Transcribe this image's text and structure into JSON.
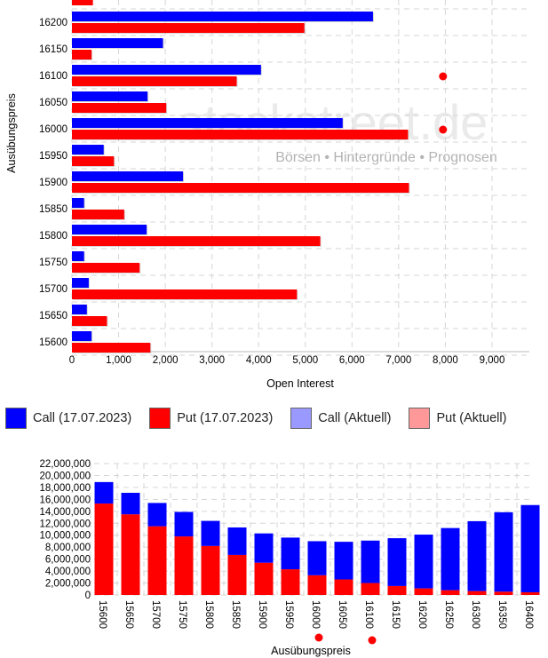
{
  "watermark": {
    "brand": "stockstreet.de",
    "tagline": "Börsen • Hintergründe • Prognosen"
  },
  "legend": [
    {
      "label": "Call (17.07.2023)",
      "color": "#0000ff"
    },
    {
      "label": "Put (17.07.2023)",
      "color": "#ff0000"
    },
    {
      "label": "Call (Aktuell)",
      "color": "#9999ff"
    },
    {
      "label": "Put (Aktuell)",
      "color": "#ff9999"
    }
  ],
  "chart_data": [
    {
      "type": "bar",
      "orientation": "horizontal",
      "xlabel": "Open Interest",
      "ylabel": "Ausübungspreis",
      "xlim": [
        0,
        9800
      ],
      "xticks": [
        0,
        1000,
        2000,
        3000,
        4000,
        5000,
        6000,
        7000,
        8000,
        9000
      ],
      "xtick_labels": [
        "0",
        "1,000",
        "2,000",
        "3,000",
        "4,000",
        "5,000",
        "6,000",
        "7,000",
        "8,000",
        "9,000"
      ],
      "grid": true,
      "categories": [
        "16200",
        "16150",
        "16100",
        "16050",
        "16000",
        "15950",
        "15900",
        "15850",
        "15800",
        "15750",
        "15700",
        "15650",
        "15600"
      ],
      "series": [
        {
          "name": "Call (17.07.2023)",
          "color": "#0000ff",
          "values": [
            6450,
            1950,
            4050,
            1620,
            5800,
            680,
            2380,
            260,
            1600,
            260,
            360,
            320,
            420
          ]
        },
        {
          "name": "Put (17.07.2023)",
          "color": "#ff0000",
          "values": [
            4980,
            420,
            3530,
            2020,
            7200,
            900,
            7220,
            1120,
            5320,
            1450,
            4820,
            750,
            1680
          ]
        }
      ],
      "partial_top_bar": {
        "series": "Put (17.07.2023)",
        "value": 450
      },
      "markers": [
        {
          "category": "16100",
          "x": 7950,
          "color": "#ff0000"
        },
        {
          "category": "16000",
          "x": 7950,
          "color": "#ff0000"
        }
      ]
    },
    {
      "type": "bar",
      "stacked": true,
      "xlabel": "Ausübungspreis",
      "ylim": [
        0,
        22000000
      ],
      "yticks": [
        0,
        2000000,
        4000000,
        6000000,
        8000000,
        10000000,
        12000000,
        14000000,
        16000000,
        18000000,
        20000000,
        22000000
      ],
      "ytick_labels": [
        "0",
        "2,000,000",
        "4,000,000",
        "6,000,000",
        "8,000,000",
        "10,000,000",
        "12,000,000",
        "14,000,000",
        "16,000,000",
        "18,000,000",
        "20,000,000",
        "22,000,000"
      ],
      "grid": true,
      "categories": [
        "15600",
        "15650",
        "15700",
        "15750",
        "15800",
        "15850",
        "15900",
        "15950",
        "16000",
        "16050",
        "16100",
        "16150",
        "16200",
        "16250",
        "16300",
        "16350",
        "16400"
      ],
      "series": [
        {
          "name": "Put (17.07.2023)",
          "color": "#ff0000",
          "values": [
            15300000,
            13500000,
            11500000,
            9800000,
            8200000,
            6700000,
            5400000,
            4300000,
            3300000,
            2600000,
            2000000,
            1500000,
            1100000,
            800000,
            650000,
            550000,
            450000
          ]
        },
        {
          "name": "Call (17.07.2023)",
          "color": "#0000ff",
          "values": [
            3600000,
            3600000,
            3900000,
            4100000,
            4200000,
            4600000,
            4900000,
            5300000,
            5700000,
            6300000,
            7100000,
            8000000,
            9000000,
            10400000,
            11700000,
            13300000,
            14600000
          ]
        }
      ],
      "markers": [
        {
          "category": "16000",
          "color": "#ff0000"
        },
        {
          "category": "16100",
          "color": "#ff0000"
        }
      ]
    }
  ]
}
